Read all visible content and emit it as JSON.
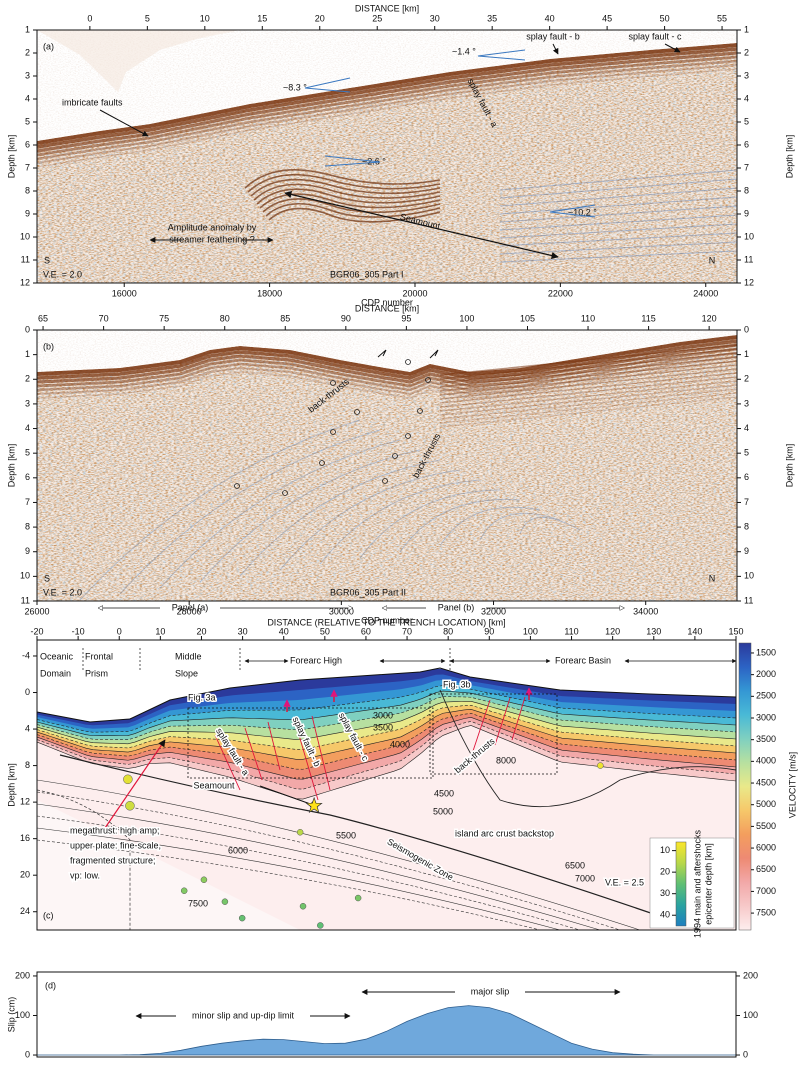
{
  "chart_data": [
    {
      "type": "section",
      "panel_label": "(a)",
      "distance_label": "DISTANCE [km]",
      "distance_lim": [
        -4.6,
        56.3
      ],
      "distance_ticks": [
        0,
        5,
        10,
        15,
        20,
        25,
        30,
        35,
        40,
        45,
        50,
        55
      ],
      "xlabel": "CDP number",
      "xlim": [
        14800,
        24430
      ],
      "xticks": [
        16000,
        18000,
        20000,
        22000,
        24000
      ],
      "ylabel": "Depth [km]",
      "ylim": [
        1,
        12
      ],
      "yticks": [
        1,
        2,
        3,
        4,
        5,
        6,
        7,
        8,
        9,
        10,
        11,
        12
      ],
      "annotations": [
        "imbricate faults",
        "~8.3 °",
        "~1.4 °",
        "splay fault - b",
        "splay fault - c",
        "splay fault - a",
        "~2.6 °",
        "Seamount",
        "~10.2 °",
        "Amplitude anomaly by",
        "streamer feathering ?"
      ],
      "south": "S",
      "north": "N",
      "ve": "V.E. = 2.0",
      "profile": "BGR06_305 Part I"
    },
    {
      "type": "section",
      "panel_label": "(b)",
      "distance_label": "DISTANCE [km]",
      "distance_lim": [
        64.5,
        122.3
      ],
      "distance_ticks": [
        65,
        70,
        75,
        80,
        85,
        90,
        95,
        100,
        105,
        110,
        115,
        120
      ],
      "xlabel": "CDP number",
      "xlim": [
        26000,
        35200
      ],
      "xticks": [
        26000,
        28000,
        30000,
        32000,
        34000
      ],
      "ylabel": "Depth [km]",
      "ylim": [
        0,
        11
      ],
      "yticks": [
        0,
        1,
        2,
        3,
        4,
        5,
        6,
        7,
        8,
        9,
        10,
        11
      ],
      "annotations": [
        "back-thrusts",
        "back-thrusts"
      ],
      "south": "S",
      "north": "N",
      "ve": "V.E. = 2.0",
      "profile": "BGR06_305 Part II"
    },
    {
      "type": "model",
      "panel_label": "(c)",
      "panel_markers": [
        "Panel (a)",
        "Panel (b)"
      ],
      "xlabel": "DISTANCE (RELATIVE TO THE TRENCH LOCATION) [km]",
      "xlim": [
        -20,
        150
      ],
      "xticks": [
        -20,
        -10,
        0,
        10,
        20,
        30,
        40,
        50,
        60,
        70,
        80,
        90,
        100,
        110,
        120,
        130,
        140,
        150
      ],
      "ylabel": "Depth [km]",
      "ylim": [
        -5.75,
        26
      ],
      "yticks": [
        -4,
        0,
        4,
        8,
        12,
        16,
        20,
        24
      ],
      "regions": [
        [
          "Oceanic",
          "Domain"
        ],
        [
          "Frontal",
          "Prism"
        ],
        [
          "Middle",
          "Slope"
        ],
        [
          "Forearc High"
        ],
        [
          "Forearc Basin"
        ]
      ],
      "annotations": [
        "Fig. 3a",
        "Fig. 3b",
        "splay fault - a",
        "splay fault - b",
        "splay fault - c",
        "back-thrusts",
        "Seamount",
        "megathrust: high amp;",
        "upper plate: fine-scale,",
        "fragmented structure;",
        "vp: low.",
        "island arc crust backstop",
        "Seismogenic Zone",
        "V.E. = 2.5"
      ],
      "contours": [
        3000,
        3500,
        4000,
        4500,
        5000,
        5500,
        6000,
        6500,
        7000,
        7500,
        8000
      ],
      "colorbar": {
        "label": "VELOCITY [m/s]",
        "lim": [
          1270,
          7890
        ],
        "ticks": [
          1500,
          2000,
          2500,
          3000,
          3500,
          4000,
          4500,
          5000,
          5500,
          6000,
          6500,
          7000,
          7500
        ],
        "colors": [
          "#2b3a9c",
          "#2c63c4",
          "#3497d4",
          "#49b9d6",
          "#7fd0c0",
          "#b7e0a0",
          "#e9e98a",
          "#f6c86a",
          "#f39e5e",
          "#ee8a73",
          "#f2a8a8",
          "#f7c9c9",
          "#fdeeee"
        ]
      },
      "epicenters": {
        "label_lines": [
          "1994 main and aftershocks",
          "epicenter depth [km]"
        ],
        "lim": [
          6,
          45
        ],
        "ticks": [
          10,
          20,
          30,
          40
        ],
        "colors": [
          "#fbe62a",
          "#b8d84a",
          "#5fbf74",
          "#2aa3a0",
          "#1e7fbf"
        ],
        "x": [
          2.1,
          2.6,
          44.0,
          20.6,
          15.8,
          25.7,
          29.9,
          44.7,
          48.9,
          58.1,
          117.0
        ],
        "depth": [
          9.5,
          12.4,
          15.3,
          20.5,
          21.7,
          22.9,
          24.7,
          23.4,
          25.5,
          22.5,
          8.0
        ]
      },
      "mainshock": {
        "x": 47.4,
        "depth": 12.4
      }
    },
    {
      "type": "area",
      "panel_label": "(d)",
      "ylabel": "Slip (cm)",
      "xlim": [
        -20,
        150
      ],
      "ylim": [
        -5,
        210
      ],
      "yticks": [
        0,
        100,
        200
      ],
      "color": "#6fa8dc",
      "x": [
        -20,
        0,
        5,
        10,
        15,
        20,
        25,
        30,
        35,
        40,
        45,
        50,
        55,
        60,
        65,
        70,
        75,
        80,
        85,
        90,
        95,
        100,
        105,
        110,
        115,
        120,
        125,
        130,
        150
      ],
      "values": [
        0,
        0,
        1,
        4,
        12,
        22,
        30,
        36,
        40,
        39,
        34,
        29,
        30,
        40,
        60,
        85,
        105,
        120,
        125,
        120,
        105,
        80,
        55,
        30,
        15,
        6,
        2,
        0,
        0
      ],
      "annotations": [
        "minor slip and up-dip limit",
        "major slip"
      ]
    }
  ]
}
